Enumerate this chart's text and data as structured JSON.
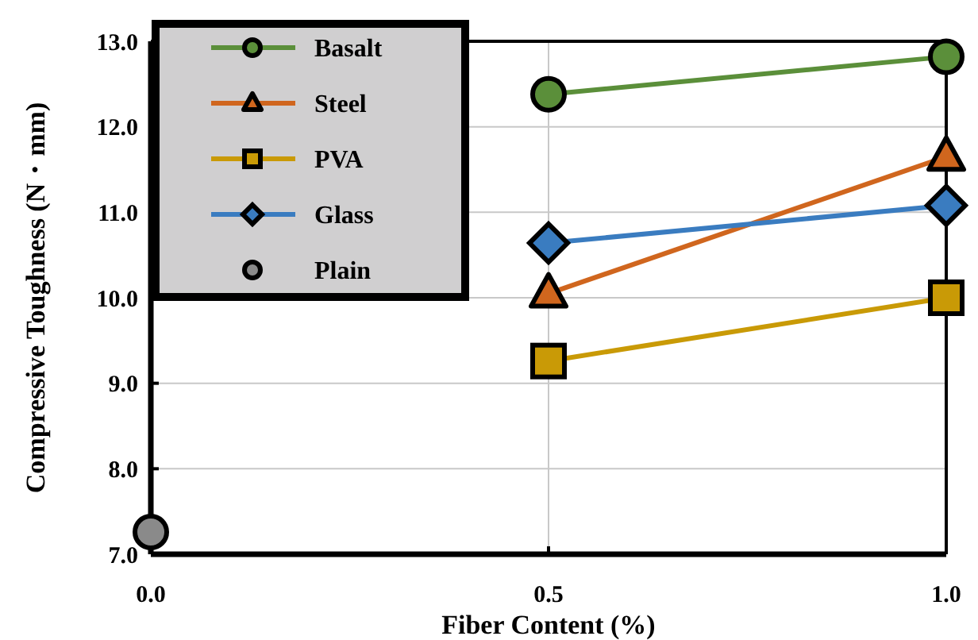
{
  "chart_data": {
    "type": "line",
    "xlabel": "Fiber Content (%)",
    "ylabel": "Compressive Toughness (N・mm)",
    "xlim": [
      0,
      1
    ],
    "xticks": [
      {
        "value": 0,
        "label": "0.0"
      },
      0.5,
      {
        "value": 1,
        "label": "1.0"
      }
    ],
    "ylim": [
      7,
      13
    ],
    "yticks": [
      {
        "value": 7,
        "label": "7.0"
      },
      {
        "value": 8,
        "label": "8.0"
      },
      {
        "value": 9,
        "label": "9.0"
      },
      {
        "value": 10,
        "label": "10.0"
      },
      {
        "value": 11,
        "label": "11.0"
      },
      {
        "value": 12,
        "label": "12.0"
      },
      {
        "value": 13,
        "label": "13.0"
      }
    ],
    "grid": true,
    "legend": "top left",
    "series": [
      {
        "name": "Basalt",
        "color": "#5b8f3a",
        "marker": "circle",
        "x": [
          0.5,
          1
        ],
        "values": [
          12.38,
          12.82
        ]
      },
      {
        "name": "Steel",
        "color": "#d0661e",
        "marker": "triangle",
        "x": [
          0.5,
          1
        ],
        "values": [
          10.05,
          11.65
        ]
      },
      {
        "name": "PVA",
        "color": "#c99a06",
        "marker": "square",
        "x": [
          0.5,
          1
        ],
        "values": [
          9.26,
          10.0
        ]
      },
      {
        "name": "Glass",
        "color": "#3a7cc0",
        "marker": "diamond",
        "x": [
          0.5,
          1
        ],
        "values": [
          10.64,
          11.08
        ]
      },
      {
        "name": "Plain",
        "color": "#8a8a8a",
        "type": "scatter",
        "marker": "circle",
        "x": [
          0
        ],
        "values": [
          7.26
        ]
      }
    ]
  }
}
